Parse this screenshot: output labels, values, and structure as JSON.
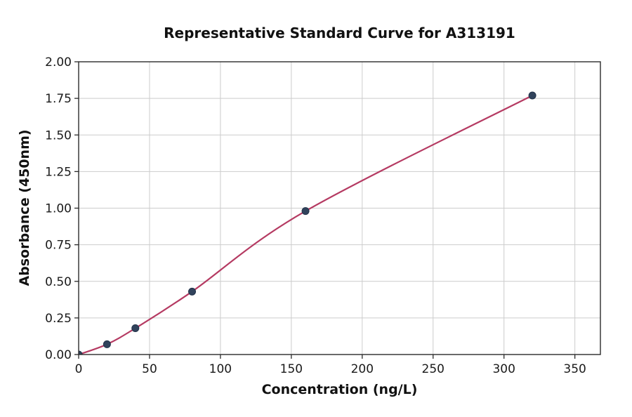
{
  "chart_data": {
    "type": "line",
    "title": "Representative Standard Curve for A313191",
    "xlabel": "Concentration (ng/L)",
    "ylabel": "Absorbance (450nm)",
    "x": [
      0,
      20,
      40,
      80,
      160,
      320
    ],
    "y": [
      0.0,
      0.07,
      0.18,
      0.43,
      0.98,
      1.77
    ],
    "xlim": [
      0,
      368
    ],
    "ylim": [
      0,
      2
    ],
    "x_ticks": [
      0,
      50,
      100,
      150,
      200,
      250,
      300,
      350
    ],
    "x_tick_labels": [
      "0",
      "50",
      "100",
      "150",
      "200",
      "250",
      "300",
      "350"
    ],
    "y_ticks": [
      0,
      0.25,
      0.5,
      0.75,
      1.0,
      1.25,
      1.5,
      1.75,
      2.0
    ],
    "y_tick_labels": [
      "0.00",
      "0.25",
      "0.50",
      "0.75",
      "1.00",
      "1.25",
      "1.50",
      "1.75",
      "2.00"
    ],
    "grid": true,
    "legend": "none",
    "colors": {
      "line": "#b53a62",
      "marker": "#31435c",
      "marker_edge": "#22334a",
      "grid": "#cccccc",
      "spine": "#2b2b2b",
      "tick_text": "#1a1a1a",
      "background": "#ffffff"
    }
  }
}
